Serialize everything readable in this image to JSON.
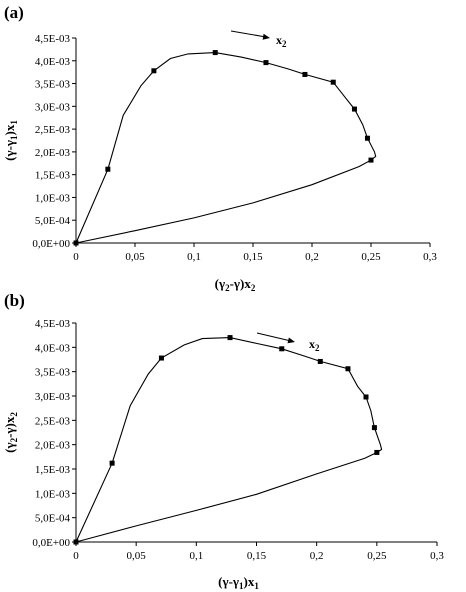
{
  "chart_data": [
    {
      "type": "line",
      "panel_label": "(a)",
      "xlabel": {
        "pre": "(γ",
        "s1": "2",
        "mid": "-γ)x",
        "s2": "2"
      },
      "ylabel": {
        "pre": "(γ-γ",
        "s1": "1",
        "mid": ")x",
        "s2": "1"
      },
      "annotation": {
        "text": "x",
        "sub": "2"
      },
      "xlim": [
        0,
        0.3
      ],
      "ylim": [
        0,
        0.0045
      ],
      "xticks": [
        "0",
        "0,05",
        "0,1",
        "0,15",
        "0,2",
        "0,25",
        "0,3"
      ],
      "yticks": [
        "0,0E+00",
        "5,0E-04",
        "1,0E-03",
        "1,5E-03",
        "2,0E-03",
        "2,5E-03",
        "3,0E-03",
        "3,5E-03",
        "4,0E-03",
        "4,5E-03"
      ],
      "curve": [
        [
          0,
          0
        ],
        [
          0.027,
          0.00162
        ],
        [
          0.04,
          0.0028
        ],
        [
          0.055,
          0.00345
        ],
        [
          0.066,
          0.00378
        ],
        [
          0.08,
          0.00405
        ],
        [
          0.095,
          0.00415
        ],
        [
          0.118,
          0.00418
        ],
        [
          0.14,
          0.00408
        ],
        [
          0.161,
          0.00396
        ],
        [
          0.18,
          0.00382
        ],
        [
          0.194,
          0.0037
        ],
        [
          0.218,
          0.00353
        ],
        [
          0.228,
          0.0032
        ],
        [
          0.236,
          0.00294
        ],
        [
          0.243,
          0.0026
        ],
        [
          0.247,
          0.0023
        ],
        [
          0.253,
          0.002
        ],
        [
          0.254,
          0.0019
        ],
        [
          0.25,
          0.00182
        ],
        [
          0.24,
          0.00168
        ],
        [
          0.2,
          0.00128
        ],
        [
          0.15,
          0.00088
        ],
        [
          0.1,
          0.00055
        ],
        [
          0.05,
          0.00027
        ],
        [
          0,
          0
        ]
      ],
      "markers": [
        [
          0,
          0
        ],
        [
          0.027,
          0.00162
        ],
        [
          0.066,
          0.00378
        ],
        [
          0.118,
          0.00418
        ],
        [
          0.161,
          0.00396
        ],
        [
          0.194,
          0.0037
        ],
        [
          0.218,
          0.00353
        ],
        [
          0.236,
          0.00294
        ],
        [
          0.247,
          0.0023
        ],
        [
          0.25,
          0.00182
        ]
      ]
    },
    {
      "type": "line",
      "panel_label": "(b)",
      "xlabel": {
        "pre": "(γ-γ",
        "s1": "1",
        "mid": ")x",
        "s2": "1"
      },
      "ylabel": {
        "pre": "(γ",
        "s1": "2",
        "mid": "-γ)x",
        "s2": "2"
      },
      "annotation": {
        "text": "x",
        "sub": "2"
      },
      "xlim": [
        0,
        0.3
      ],
      "ylim": [
        0,
        0.0045
      ],
      "xticks": [
        "0",
        "0,05",
        "0,1",
        "0,15",
        "0,2",
        "0,25",
        "0,3"
      ],
      "yticks": [
        "0,0E+00",
        "5,0E-04",
        "1,0E-03",
        "1,5E-03",
        "2,0E-03",
        "2,5E-03",
        "3,0E-03",
        "3,5E-03",
        "4,0E-03",
        "4,5E-03"
      ],
      "curve": [
        [
          0,
          0
        ],
        [
          0.03,
          0.00162
        ],
        [
          0.045,
          0.0028
        ],
        [
          0.06,
          0.00345
        ],
        [
          0.071,
          0.00378
        ],
        [
          0.09,
          0.00405
        ],
        [
          0.105,
          0.00418
        ],
        [
          0.128,
          0.0042
        ],
        [
          0.15,
          0.00408
        ],
        [
          0.171,
          0.00397
        ],
        [
          0.19,
          0.00382
        ],
        [
          0.203,
          0.00371
        ],
        [
          0.226,
          0.00356
        ],
        [
          0.234,
          0.0032
        ],
        [
          0.241,
          0.00298
        ],
        [
          0.245,
          0.0027
        ],
        [
          0.248,
          0.00235
        ],
        [
          0.253,
          0.002
        ],
        [
          0.254,
          0.0019
        ],
        [
          0.25,
          0.00184
        ],
        [
          0.24,
          0.00172
        ],
        [
          0.2,
          0.0014
        ],
        [
          0.15,
          0.00098
        ],
        [
          0.1,
          0.00065
        ],
        [
          0.05,
          0.00033
        ],
        [
          0,
          0
        ]
      ],
      "markers": [
        [
          0,
          0
        ],
        [
          0.03,
          0.00162
        ],
        [
          0.071,
          0.00378
        ],
        [
          0.128,
          0.0042
        ],
        [
          0.171,
          0.00397
        ],
        [
          0.203,
          0.00371
        ],
        [
          0.226,
          0.00356
        ],
        [
          0.241,
          0.00298
        ],
        [
          0.248,
          0.00235
        ],
        [
          0.25,
          0.00184
        ]
      ]
    }
  ]
}
